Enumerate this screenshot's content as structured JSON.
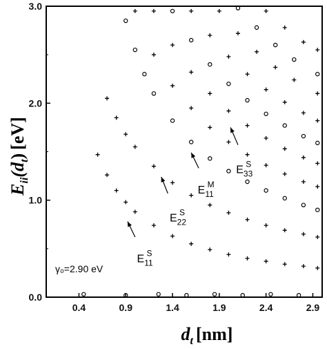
{
  "chart_data": {
    "type": "scatter",
    "title": "",
    "xlabel": {
      "main": "d",
      "sub": "t",
      "units": "[nm]"
    },
    "ylabel": {
      "main": "E",
      "sub": "ii",
      "arg_open": "(d",
      "arg_sub": "t",
      "arg_close": ")",
      "units": "[eV]"
    },
    "xlim": [
      0.05,
      3.0
    ],
    "ylim": [
      0.0,
      3.0
    ],
    "x_ticks": [
      0.4,
      0.9,
      1.4,
      1.9,
      2.4,
      2.9
    ],
    "x_tick_labels": [
      "0.4",
      "0.9",
      "1.4",
      "1.9",
      "2.4",
      "2.9"
    ],
    "y_ticks": [
      0.0,
      1.0,
      2.0,
      3.0
    ],
    "y_tick_labels": [
      "0.0",
      "1.0",
      "2.0",
      "3.0"
    ],
    "grid": false,
    "legend": "none",
    "annotation_text": "γ₀=2.90 eV",
    "annotations": [
      {
        "id": "E11S",
        "base": "E",
        "sub": "11",
        "sup": "S",
        "text_at": [
          1.02,
          0.36
        ],
        "arrow_from": [
          1.0,
          0.62
        ],
        "arrow_to": [
          0.92,
          0.78
        ]
      },
      {
        "id": "E22S",
        "base": "E",
        "sub": "22",
        "sup": "S",
        "text_at": [
          1.37,
          0.78
        ],
        "arrow_from": [
          1.35,
          1.07
        ],
        "arrow_to": [
          1.28,
          1.24
        ]
      },
      {
        "id": "E11M",
        "base": "E",
        "sub": "11",
        "sup": "M",
        "text_at": [
          1.67,
          1.07
        ],
        "arrow_from": [
          1.68,
          1.33
        ],
        "arrow_to": [
          1.6,
          1.49
        ]
      },
      {
        "id": "E33S",
        "base": "E",
        "sub": "33",
        "sup": "S",
        "text_at": [
          2.08,
          1.28
        ],
        "arrow_from": [
          2.1,
          1.57
        ],
        "arrow_to": [
          2.02,
          1.75
        ]
      }
    ],
    "series": [
      {
        "marker": "plus",
        "values_note": "E11S",
        "points": [
          [
            0.6,
            1.47
          ],
          [
            0.7,
            1.26
          ],
          [
            0.8,
            1.1
          ],
          [
            0.9,
            0.98
          ],
          [
            1.0,
            0.88
          ],
          [
            1.2,
            0.74
          ],
          [
            1.4,
            0.63
          ],
          [
            1.6,
            0.55
          ],
          [
            1.8,
            0.49
          ],
          [
            2.0,
            0.44
          ],
          [
            2.2,
            0.4
          ],
          [
            2.4,
            0.37
          ],
          [
            2.6,
            0.34
          ],
          [
            2.8,
            0.32
          ],
          [
            2.95,
            0.3
          ]
        ]
      },
      {
        "marker": "plus",
        "values_note": "E22S",
        "points": [
          [
            0.7,
            2.05
          ],
          [
            0.8,
            1.85
          ],
          [
            0.9,
            1.68
          ],
          [
            1.0,
            1.55
          ],
          [
            1.2,
            1.35
          ],
          [
            1.4,
            1.18
          ],
          [
            1.6,
            1.05
          ],
          [
            1.8,
            0.95
          ],
          [
            2.0,
            0.87
          ],
          [
            2.2,
            0.8
          ],
          [
            2.4,
            0.74
          ],
          [
            2.6,
            0.69
          ],
          [
            2.8,
            0.65
          ],
          [
            2.95,
            0.62
          ]
        ]
      },
      {
        "marker": "circle",
        "values_note": "E11M",
        "points": [
          [
            0.9,
            2.85
          ],
          [
            1.0,
            2.55
          ],
          [
            1.1,
            2.3
          ],
          [
            1.2,
            2.1
          ],
          [
            1.4,
            1.82
          ],
          [
            1.6,
            1.6
          ],
          [
            1.8,
            1.43
          ],
          [
            2.0,
            1.3
          ],
          [
            2.2,
            1.19
          ],
          [
            2.4,
            1.1
          ],
          [
            2.6,
            1.02
          ],
          [
            2.8,
            0.95
          ],
          [
            2.95,
            0.9
          ]
        ]
      },
      {
        "marker": "plus",
        "values_note": "E33S",
        "points": [
          [
            1.0,
            2.95
          ],
          [
            1.2,
            2.5
          ],
          [
            1.4,
            2.18
          ],
          [
            1.6,
            1.95
          ],
          [
            1.8,
            1.75
          ],
          [
            2.0,
            1.6
          ],
          [
            2.2,
            1.47
          ],
          [
            2.4,
            1.36
          ],
          [
            2.6,
            1.27
          ],
          [
            2.8,
            1.19
          ],
          [
            2.95,
            1.14
          ]
        ]
      },
      {
        "marker": "plus",
        "values_note": "E44S",
        "points": [
          [
            1.2,
            2.95
          ],
          [
            1.4,
            2.6
          ],
          [
            1.6,
            2.32
          ],
          [
            1.8,
            2.1
          ],
          [
            2.0,
            1.92
          ],
          [
            2.2,
            1.77
          ],
          [
            2.4,
            1.64
          ],
          [
            2.6,
            1.53
          ],
          [
            2.8,
            1.44
          ],
          [
            2.95,
            1.38
          ]
        ]
      },
      {
        "marker": "circle",
        "values_note": "E22M",
        "points": [
          [
            1.4,
            2.95
          ],
          [
            1.6,
            2.65
          ],
          [
            1.8,
            2.4
          ],
          [
            2.0,
            2.2
          ],
          [
            2.2,
            2.03
          ],
          [
            2.4,
            1.89
          ],
          [
            2.6,
            1.77
          ],
          [
            2.8,
            1.66
          ],
          [
            2.95,
            1.59
          ]
        ]
      },
      {
        "marker": "plus",
        "values_note": "E55S",
        "points": [
          [
            1.6,
            2.95
          ],
          [
            1.8,
            2.7
          ],
          [
            2.0,
            2.48
          ],
          [
            2.2,
            2.3
          ],
          [
            2.4,
            2.14
          ],
          [
            2.6,
            2.01
          ],
          [
            2.8,
            1.9
          ],
          [
            2.95,
            1.82
          ]
        ]
      },
      {
        "marker": "plus",
        "values_note": "E66S",
        "points": [
          [
            1.9,
            2.95
          ],
          [
            2.1,
            2.72
          ],
          [
            2.3,
            2.53
          ],
          [
            2.5,
            2.37
          ],
          [
            2.7,
            2.24
          ],
          [
            2.95,
            2.1
          ]
        ]
      },
      {
        "marker": "circle",
        "values_note": "E33M",
        "points": [
          [
            2.1,
            2.98
          ],
          [
            2.3,
            2.78
          ],
          [
            2.5,
            2.6
          ],
          [
            2.7,
            2.45
          ],
          [
            2.95,
            2.3
          ]
        ]
      },
      {
        "marker": "plus",
        "values_note": "E77S",
        "points": [
          [
            2.4,
            2.95
          ],
          [
            2.6,
            2.78
          ],
          [
            2.8,
            2.63
          ],
          [
            2.95,
            2.55
          ]
        ]
      },
      {
        "marker": "circle",
        "values_note": "baseline",
        "points": [
          [
            0.45,
            0.03
          ],
          [
            0.9,
            0.02
          ],
          [
            1.25,
            0.03
          ],
          [
            1.55,
            0.02
          ],
          [
            1.85,
            0.03
          ],
          [
            2.15,
            0.02
          ],
          [
            2.45,
            0.03
          ],
          [
            2.75,
            0.02
          ]
        ]
      }
    ]
  }
}
